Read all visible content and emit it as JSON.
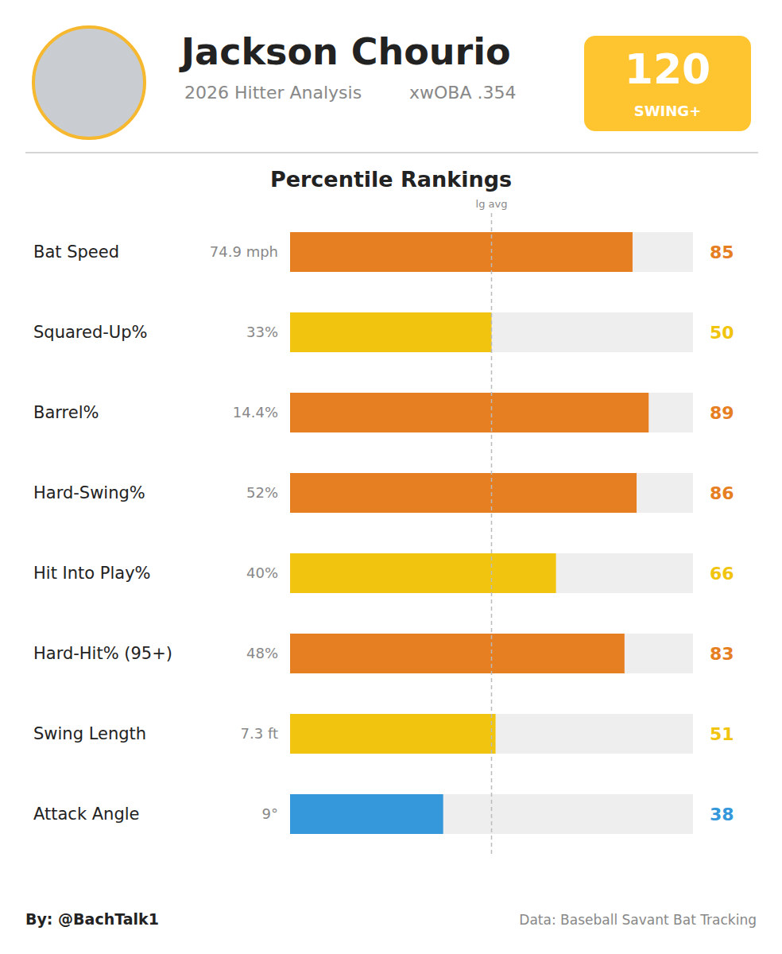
{
  "header": {
    "name": "Jackson Chourio",
    "subtitle": "2026 Hitter Analysis",
    "xwoba_label": "xwOBA .354",
    "swing_plus": 120,
    "swing_plus_label": "SWING+"
  },
  "chart_data": {
    "type": "bar",
    "orientation": "horizontal",
    "title": "Percentile Rankings",
    "categories": [
      "Bat Speed",
      "Squared-Up%",
      "Barrel%",
      "Hard-Swing%",
      "Hit Into Play%",
      "Hard-Hit% (95+)",
      "Swing Length",
      "Attack Angle"
    ],
    "values": [
      85,
      50,
      89,
      86,
      66,
      83,
      51,
      38
    ],
    "stat_labels": [
      "74.9 mph",
      "33%",
      "14.4%",
      "52%",
      "40%",
      "48%",
      "7.3 ft",
      "9°"
    ],
    "colors": [
      "#E67E22",
      "#F1C40F",
      "#E67E22",
      "#E67E22",
      "#F1C40F",
      "#E67E22",
      "#F1C40F",
      "#3498DB"
    ],
    "xlim": [
      0,
      100
    ],
    "data_labels": true,
    "tick_labels": "y",
    "reference_line": {
      "value": 50,
      "label": "lg avg"
    }
  },
  "footer": {
    "credit": "By: @BachTalk1",
    "source": "Data: Baseball Savant Bat Tracking"
  }
}
